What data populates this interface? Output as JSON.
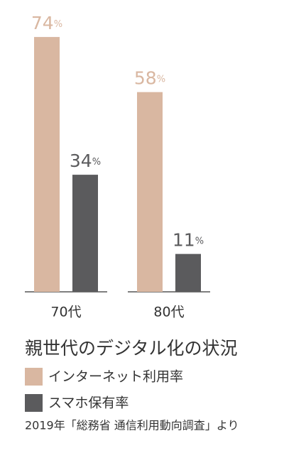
{
  "chart_data": {
    "type": "bar",
    "title": "親世代のデジタル化の状況",
    "source": "2019年「総務省 通信利用動向調査」より",
    "categories": [
      "70代",
      "80代"
    ],
    "series": [
      {
        "name": "インターネット利用率",
        "color": "#d9b7a1",
        "values": [
          74,
          58
        ],
        "value_labels": [
          "74%",
          "58%"
        ]
      },
      {
        "name": "スマホ保有率",
        "color": "#5b5b5d",
        "values": [
          34,
          11
        ],
        "value_labels": [
          "34%",
          "11%"
        ]
      }
    ]
  }
}
